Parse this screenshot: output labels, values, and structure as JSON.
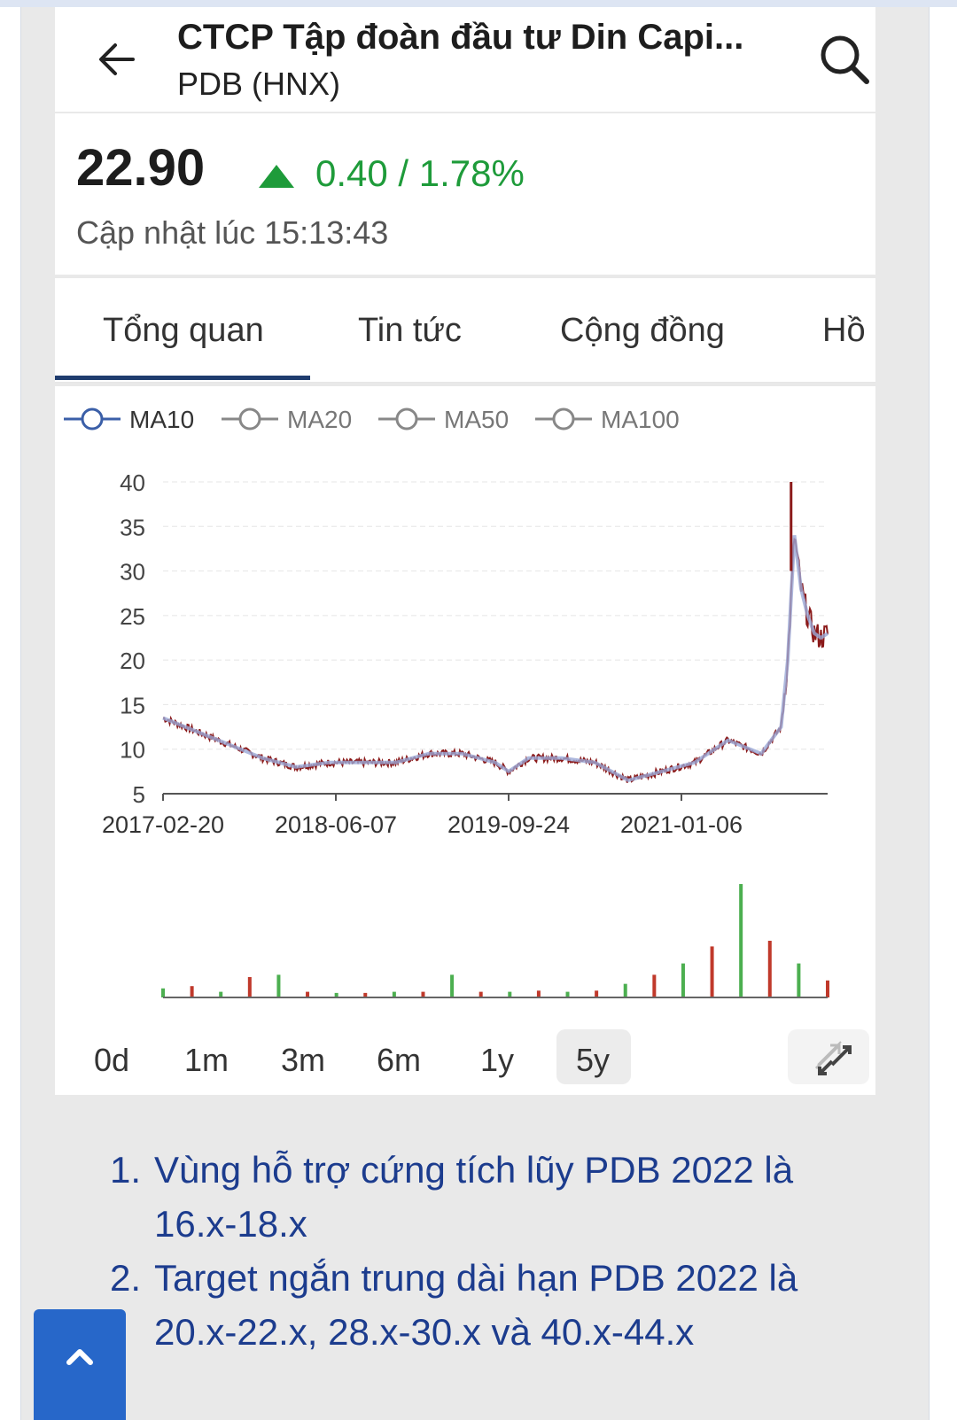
{
  "header": {
    "title": "CTCP Tập đoàn đầu tư Din Capi...",
    "subtitle": "PDB (HNX)",
    "back_icon": "arrow-left-icon",
    "search_icon": "search-icon"
  },
  "quote": {
    "price": "22.90",
    "change": "0.40 / 1.78%",
    "direction_icon": "triangle-up-icon",
    "updated": "Cập nhật lúc 15:13:43",
    "change_color": "#1e9b3a"
  },
  "tabs": [
    "Tổng quan",
    "Tin tức",
    "Cộng đồng",
    "Hồ"
  ],
  "legend": [
    {
      "label": "MA10",
      "active": true
    },
    {
      "label": "MA20",
      "active": false
    },
    {
      "label": "MA50",
      "active": false
    },
    {
      "label": "MA100",
      "active": false
    }
  ],
  "ranges": [
    "0d",
    "1m",
    "3m",
    "6m",
    "1y",
    "5y"
  ],
  "selected_range": "5y",
  "expand_icon": "expand-arrows-icon",
  "chart_data": {
    "type": "line",
    "series": [
      {
        "name": "",
        "x": [
          0,
          0.05,
          0.1,
          0.15,
          0.2,
          0.25,
          0.3,
          0.35,
          0.4,
          0.45,
          0.5,
          0.52,
          0.55,
          0.6,
          0.65,
          0.7,
          0.75,
          0.8,
          0.85,
          0.9,
          0.93,
          0.94,
          0.95,
          0.96,
          0.97,
          0.98,
          0.99,
          1.0
        ],
        "y": [
          13.5,
          12,
          10.5,
          9,
          8,
          8.5,
          8.5,
          8.5,
          9.5,
          9.5,
          8.5,
          7.5,
          9,
          9,
          8.5,
          6.5,
          7.5,
          8.5,
          11,
          9.5,
          12.5,
          20,
          34,
          28,
          25,
          23,
          22.5,
          23
        ]
      }
    ],
    "volume": [
      0.08,
      0.1,
      0.05,
      0.18,
      0.2,
      0.05,
      0.04,
      0.04,
      0.05,
      0.05,
      0.2,
      0.05,
      0.05,
      0.06,
      0.05,
      0.06,
      0.12,
      0.2,
      0.3,
      0.45,
      1.0,
      0.5,
      0.3,
      0.15
    ],
    "x_ticks": [
      "2017-02-20",
      "2018-06-07",
      "2019-09-24",
      "2021-01-06"
    ],
    "y_ticks": [
      "40",
      "35",
      "30",
      "25",
      "20",
      "15",
      "10",
      "5"
    ],
    "ylim": [
      5,
      40
    ],
    "grid": true
  },
  "notes": [
    {
      "num": "1.",
      "text": "Vùng hỗ trợ cứng tích lũy PDB 2022 là 16.x-18.x"
    },
    {
      "num": "2.",
      "text": "Target ngắn trung dài hạn PDB 2022 là 20.x-22.x, 28.x-30.x và 40.x-44.x"
    }
  ],
  "scroll_top_icon": "chevron-up-icon"
}
